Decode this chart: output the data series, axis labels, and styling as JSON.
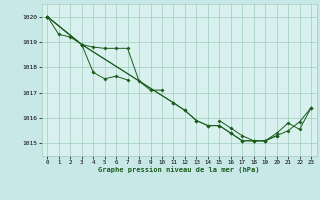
{
  "background_color": "#c8e8e8",
  "plot_bg_color": "#d8f0ee",
  "grid_color": "#a0ccbb",
  "line_color": "#1a5c1a",
  "xlabel": "Graphe pression niveau de la mer (hPa)",
  "xlim": [
    -0.5,
    23.5
  ],
  "ylim": [
    1014.5,
    1020.5
  ],
  "yticks": [
    1015,
    1016,
    1017,
    1018,
    1019,
    1020
  ],
  "xticks": [
    0,
    1,
    2,
    3,
    4,
    5,
    6,
    7,
    8,
    9,
    10,
    11,
    12,
    13,
    14,
    15,
    16,
    17,
    18,
    19,
    20,
    21,
    22,
    23
  ],
  "series": [
    {
      "x": [
        0,
        1,
        2,
        3,
        4,
        5,
        6,
        7
      ],
      "y": [
        1020.0,
        1019.3,
        1019.2,
        1018.9,
        1017.8,
        1017.55,
        1017.65,
        1017.5
      ]
    },
    {
      "x": [
        0,
        3,
        4,
        5,
        6,
        7,
        8,
        9,
        10
      ],
      "y": [
        1020.0,
        1018.9,
        1018.8,
        1018.75,
        1018.75,
        1018.75,
        1017.45,
        1017.1,
        1017.1
      ]
    },
    {
      "x": [
        0,
        3,
        11,
        12,
        13,
        14,
        15,
        16,
        17,
        18,
        19,
        20
      ],
      "y": [
        1020.0,
        1018.9,
        1016.6,
        1016.3,
        1015.9,
        1015.7,
        1015.7,
        1015.4,
        1015.1,
        1015.1,
        1015.1,
        1015.3
      ]
    },
    {
      "x": [
        0,
        3,
        11,
        12,
        13,
        14,
        15,
        16,
        17,
        18,
        19,
        20,
        21,
        22,
        23
      ],
      "y": [
        1020.0,
        1018.9,
        1016.6,
        1016.3,
        1015.9,
        1015.7,
        1015.7,
        1015.4,
        1015.1,
        1015.1,
        1015.1,
        1015.3,
        1015.5,
        1015.85,
        1016.4
      ]
    },
    {
      "x": [
        15,
        16,
        17,
        18,
        19,
        20,
        21,
        22,
        23
      ],
      "y": [
        1015.9,
        1015.6,
        1015.3,
        1015.1,
        1015.1,
        1015.4,
        1015.8,
        1015.55,
        1016.4
      ]
    }
  ]
}
